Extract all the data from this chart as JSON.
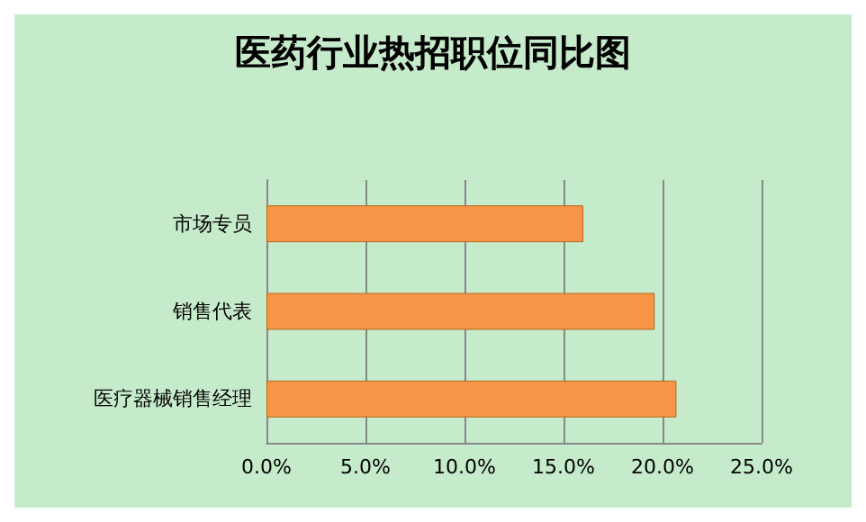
{
  "chart_data": {
    "type": "bar",
    "orientation": "horizontal",
    "title": "医药行业热招职位同比图",
    "categories": [
      "市场专员",
      "销售代表",
      "医疗器械销售经理"
    ],
    "values": [
      16.0,
      19.6,
      20.7
    ],
    "color": "#f79646",
    "xlim": [
      0,
      25
    ],
    "xticks": [
      {
        "value": 0,
        "label": "0.0%"
      },
      {
        "value": 5,
        "label": "5.0%"
      },
      {
        "value": 10,
        "label": "10.0%"
      },
      {
        "value": 15,
        "label": "15.0%"
      },
      {
        "value": 20,
        "label": "20.0%"
      },
      {
        "value": 25,
        "label": "25.0%"
      }
    ],
    "grid": "x"
  }
}
